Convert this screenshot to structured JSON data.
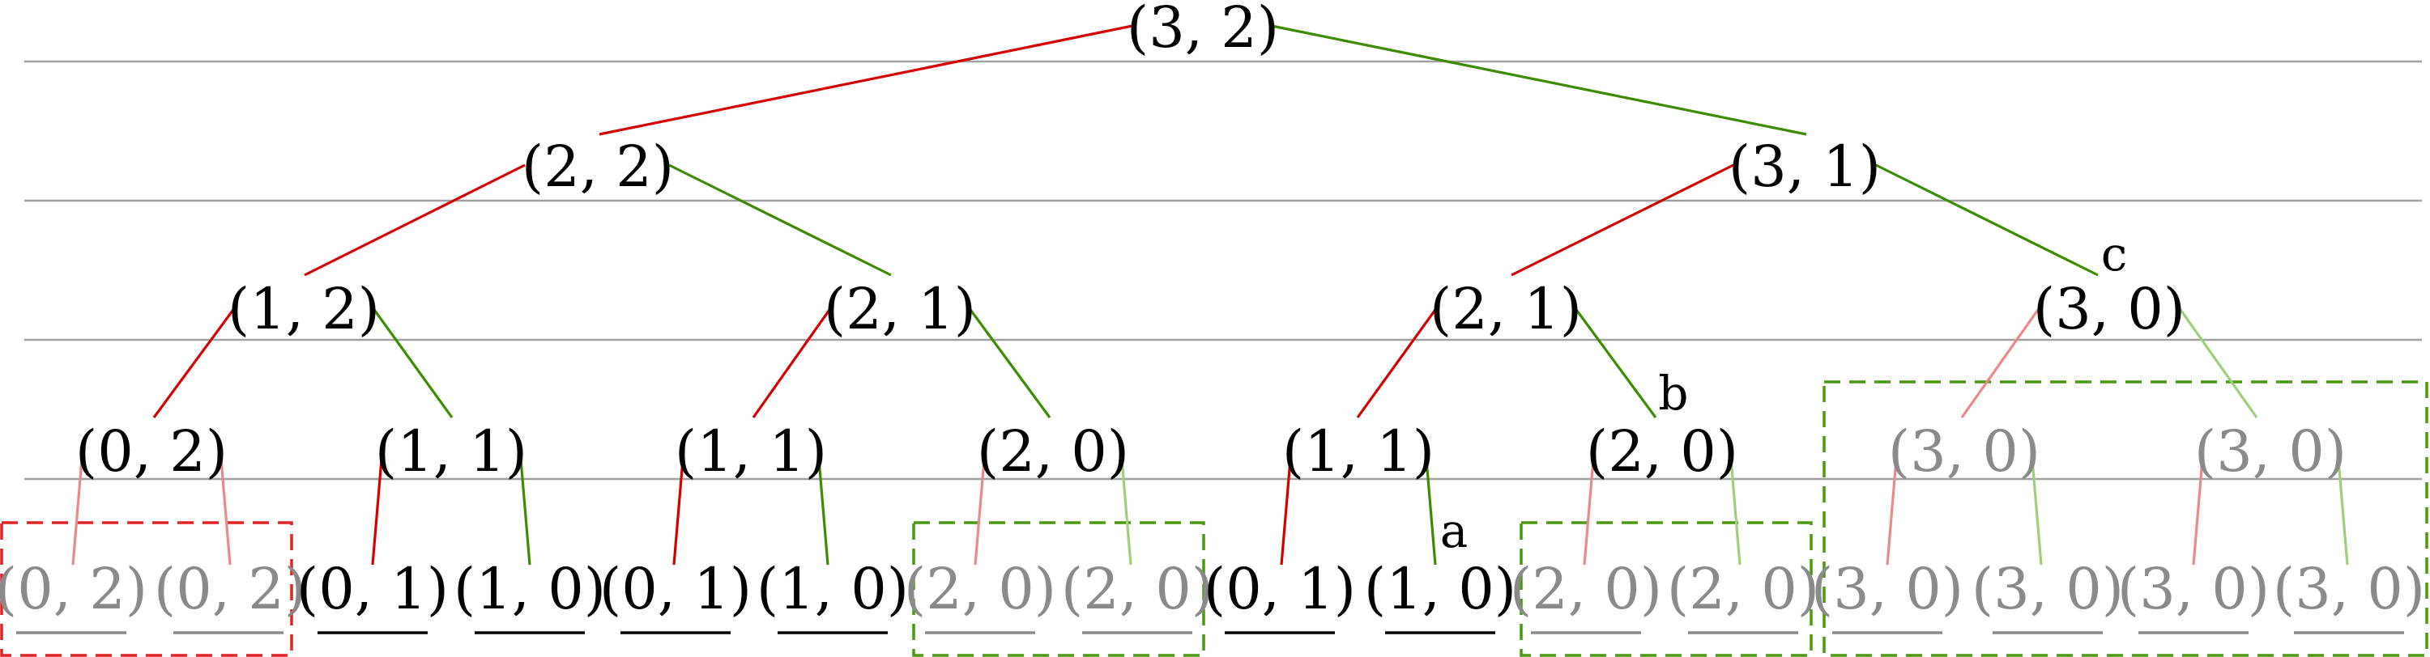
{
  "colors": {
    "left_edge": "#d40000",
    "right_edge": "#3c8c00",
    "left_edge_faded": "#ea8a8a",
    "right_edge_faded": "#9fcf7a",
    "active_text": "#000000",
    "faded_text": "#8a8a8a",
    "level_line": "#a0a0a0",
    "red_box": "#e02424",
    "green_box": "#4a9a10"
  },
  "nodes": {
    "root": "(3, 2)",
    "l1_0": "(2, 2)",
    "l1_1": "(3, 1)",
    "l2_0": "(1, 2)",
    "l2_1": "(2, 1)",
    "l2_2": "(2, 1)",
    "l2_3": "(3, 0)",
    "l3_0": "(0, 2)",
    "l3_1": "(1, 1)",
    "l3_2": "(1, 1)",
    "l3_3": "(2, 0)",
    "l3_4": "(1, 1)",
    "l3_5": "(2, 0)",
    "l3_6": "(3, 0)",
    "l3_7": "(3, 0)",
    "l4_0": "(0, 2)",
    "l4_1": "(0, 2)",
    "l4_2": "(0, 1)",
    "l4_3": "(1, 0)",
    "l4_4": "(0, 1)",
    "l4_5": "(1, 0)",
    "l4_6": "(2, 0)",
    "l4_7": "(2, 0)",
    "l4_8": "(0, 1)",
    "l4_9": "(1, 0)",
    "l4_10": "(2, 0)",
    "l4_11": "(2, 0)",
    "l4_12": "(3, 0)",
    "l4_13": "(3, 0)",
    "l4_14": "(3, 0)",
    "l4_15": "(3, 0)"
  },
  "labels": {
    "a": "a",
    "b": "b",
    "c": "c"
  }
}
